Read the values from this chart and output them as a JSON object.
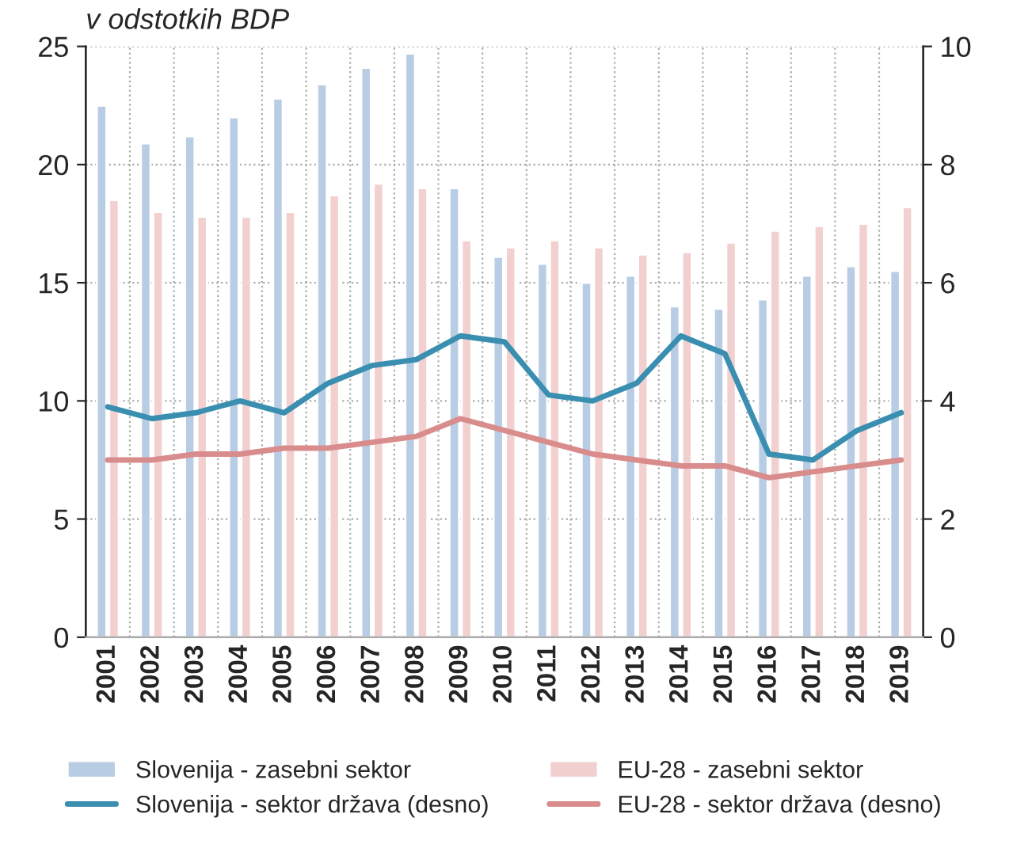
{
  "chart_data": {
    "type": "bar",
    "title": "v odstotkih BDP",
    "categories": [
      "2001",
      "2002",
      "2003",
      "2004",
      "2005",
      "2006",
      "2007",
      "2008",
      "2009",
      "2010",
      "2011",
      "2012",
      "2013",
      "2014",
      "2015",
      "2016",
      "2017",
      "2018",
      "2019"
    ],
    "series": [
      {
        "name": "Slovenija - zasebni sektor",
        "color": "#b8cce4",
        "values": [
          22.5,
          20.9,
          21.2,
          22.0,
          22.8,
          23.4,
          24.1,
          24.7,
          19.0,
          16.1,
          15.8,
          15.0,
          15.3,
          14.0,
          13.9,
          14.3,
          15.3,
          15.7,
          15.5
        ]
      },
      {
        "name": "EU-28 - zasebni sektor",
        "color": "#f2d0d0",
        "values": [
          18.5,
          18.0,
          17.8,
          17.8,
          18.0,
          18.7,
          19.2,
          19.0,
          16.8,
          16.5,
          16.8,
          16.5,
          16.2,
          16.3,
          16.7,
          17.2,
          17.4,
          17.5,
          18.2
        ]
      },
      {
        "name": "Slovenija - sektor država (desno)",
        "color": "#3a8fb0",
        "type": "line",
        "axis": "y2",
        "values": [
          3.9,
          3.7,
          3.8,
          4.0,
          3.8,
          4.3,
          4.6,
          4.7,
          5.1,
          5.0,
          4.1,
          4.0,
          4.3,
          5.1,
          4.8,
          3.1,
          3.0,
          3.5,
          3.8
        ]
      },
      {
        "name": "EU-28 - sektor država (desno)",
        "color": "#d98c8c",
        "type": "line",
        "axis": "y2",
        "values": [
          3.0,
          3.0,
          3.1,
          3.1,
          3.2,
          3.2,
          3.3,
          3.4,
          3.7,
          3.5,
          3.3,
          3.1,
          3.0,
          2.9,
          2.9,
          2.7,
          2.8,
          2.9,
          3.0
        ]
      }
    ],
    "ylim": [
      0,
      25
    ],
    "yticks": [
      0,
      5,
      10,
      15,
      20,
      25
    ],
    "y2lim": [
      0,
      10
    ],
    "y2ticks": [
      0,
      2,
      4,
      6,
      8,
      10
    ],
    "grid": true,
    "legend": "bottom"
  }
}
